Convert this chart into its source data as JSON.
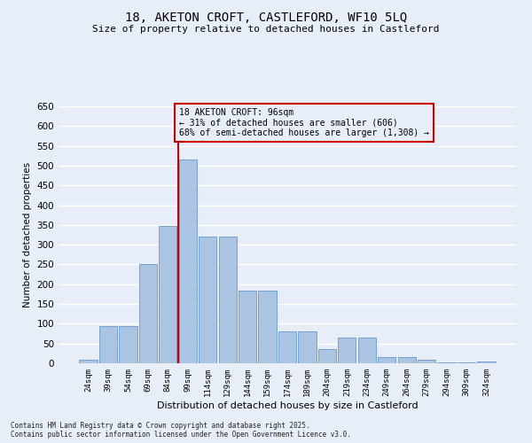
{
  "title_line1": "18, AKETON CROFT, CASTLEFORD, WF10 5LQ",
  "title_line2": "Size of property relative to detached houses in Castleford",
  "xlabel": "Distribution of detached houses by size in Castleford",
  "ylabel": "Number of detached properties",
  "bin_labels": [
    "24sqm",
    "39sqm",
    "54sqm",
    "69sqm",
    "84sqm",
    "99sqm",
    "114sqm",
    "129sqm",
    "144sqm",
    "159sqm",
    "174sqm",
    "189sqm",
    "204sqm",
    "219sqm",
    "234sqm",
    "249sqm",
    "264sqm",
    "279sqm",
    "294sqm",
    "309sqm",
    "324sqm"
  ],
  "bar_values": [
    10,
    95,
    95,
    250,
    348,
    515,
    320,
    320,
    183,
    183,
    80,
    80,
    35,
    65,
    65,
    15,
    15,
    10,
    3,
    3,
    5
  ],
  "bar_color": "#aac4e2",
  "bar_edge_color": "#6699cc",
  "bg_color": "#e8eef8",
  "grid_color": "#ffffff",
  "vline_color": "#cc0000",
  "annotation_text": "18 AKETON CROFT: 96sqm\n← 31% of detached houses are smaller (606)\n68% of semi-detached houses are larger (1,308) →",
  "annotation_box_color": "#cc0000",
  "ylim": [
    0,
    650
  ],
  "yticks": [
    0,
    50,
    100,
    150,
    200,
    250,
    300,
    350,
    400,
    450,
    500,
    550,
    600,
    650
  ],
  "footnote": "Contains HM Land Registry data © Crown copyright and database right 2025.\nContains public sector information licensed under the Open Government Licence v3.0."
}
